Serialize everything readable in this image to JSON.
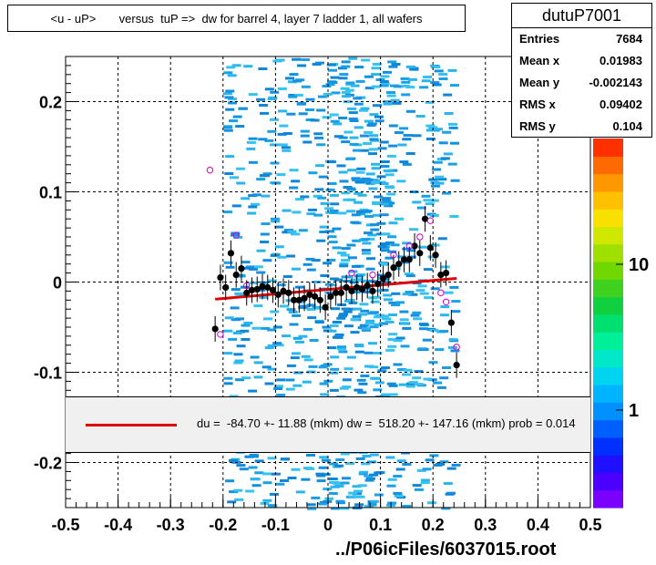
{
  "title": "<u - uP>       versus  tuP =>  dw for barrel 4, layer 7 ladder 1, all wafers",
  "stats": {
    "name": "dutuP7001",
    "rows": [
      {
        "label": "Entries",
        "value": "7684"
      },
      {
        "label": "Mean x",
        "value": "0.01983"
      },
      {
        "label": "Mean y",
        "value": "-0.002143"
      },
      {
        "label": "RMS x",
        "value": "0.09402"
      },
      {
        "label": "RMS y",
        "value": "0.104"
      }
    ]
  },
  "legend": {
    "text": "du =  -84.70 +- 11.88 (mkm) dw =  518.20 +- 147.16 (mkm) prob = 0.014"
  },
  "file_label": "../P06icFiles/6037015.root",
  "colors": {
    "fit_line": "#e00000",
    "profile_points": "#000000",
    "open_markers": "#cc00cc",
    "density": "#1aa0e6"
  },
  "chart_data": {
    "type": "scatter",
    "xlim": [
      -0.5,
      0.5
    ],
    "ylim": [
      -0.25,
      0.25
    ],
    "x_ticks": [
      "-0.5",
      "-0.4",
      "-0.3",
      "-0.2",
      "-0.1",
      "0",
      "0.1",
      "0.2",
      "0.3",
      "0.4",
      "0.5"
    ],
    "y_ticks": [
      "0.2",
      "0.1",
      "0",
      "-0.1",
      "-0.2"
    ],
    "colorbar_labels": [
      "10",
      "1"
    ],
    "grid": true,
    "fit_line": {
      "x": [
        -0.215,
        0.245
      ],
      "y": [
        -0.019,
        0.004
      ]
    },
    "profile_points": [
      {
        "x": -0.215,
        "y": -0.052
      },
      {
        "x": -0.205,
        "y": 0.005
      },
      {
        "x": -0.195,
        "y": -0.006
      },
      {
        "x": -0.185,
        "y": 0.032
      },
      {
        "x": -0.175,
        "y": 0.008
      },
      {
        "x": -0.165,
        "y": 0.015
      },
      {
        "x": -0.155,
        "y": -0.012
      },
      {
        "x": -0.145,
        "y": -0.009
      },
      {
        "x": -0.135,
        "y": -0.008
      },
      {
        "x": -0.125,
        "y": -0.005
      },
      {
        "x": -0.115,
        "y": -0.006
      },
      {
        "x": -0.105,
        "y": -0.009
      },
      {
        "x": -0.095,
        "y": -0.014
      },
      {
        "x": -0.085,
        "y": -0.01
      },
      {
        "x": -0.075,
        "y": -0.012
      },
      {
        "x": -0.065,
        "y": -0.02
      },
      {
        "x": -0.055,
        "y": -0.02
      },
      {
        "x": -0.045,
        "y": -0.018
      },
      {
        "x": -0.035,
        "y": -0.014
      },
      {
        "x": -0.025,
        "y": -0.016
      },
      {
        "x": -0.015,
        "y": -0.02
      },
      {
        "x": -0.005,
        "y": -0.028
      },
      {
        "x": 0.005,
        "y": -0.016
      },
      {
        "x": 0.015,
        "y": -0.012
      },
      {
        "x": 0.025,
        "y": -0.012
      },
      {
        "x": 0.035,
        "y": -0.006
      },
      {
        "x": 0.045,
        "y": -0.01
      },
      {
        "x": 0.055,
        "y": -0.006
      },
      {
        "x": 0.065,
        "y": -0.008
      },
      {
        "x": 0.075,
        "y": -0.004
      },
      {
        "x": 0.085,
        "y": -0.01
      },
      {
        "x": 0.095,
        "y": -0.002
      },
      {
        "x": 0.105,
        "y": 0.004
      },
      {
        "x": 0.115,
        "y": 0.008
      },
      {
        "x": 0.125,
        "y": 0.016
      },
      {
        "x": 0.135,
        "y": 0.02
      },
      {
        "x": 0.145,
        "y": 0.025
      },
      {
        "x": 0.155,
        "y": 0.025
      },
      {
        "x": 0.165,
        "y": 0.04
      },
      {
        "x": 0.175,
        "y": 0.032
      },
      {
        "x": 0.185,
        "y": 0.07
      },
      {
        "x": 0.195,
        "y": 0.038
      },
      {
        "x": 0.205,
        "y": 0.03
      },
      {
        "x": 0.215,
        "y": 0.008
      },
      {
        "x": 0.225,
        "y": 0.01
      },
      {
        "x": 0.235,
        "y": -0.045
      },
      {
        "x": 0.245,
        "y": -0.092
      }
    ],
    "open_markers": [
      {
        "x": -0.225,
        "y": 0.124
      },
      {
        "x": -0.205,
        "y": -0.058
      },
      {
        "x": -0.175,
        "y": 0.052
      },
      {
        "x": -0.155,
        "y": -0.004
      },
      {
        "x": 0.045,
        "y": 0.01
      },
      {
        "x": 0.085,
        "y": 0.008
      },
      {
        "x": 0.125,
        "y": 0.03
      },
      {
        "x": 0.155,
        "y": 0.04
      },
      {
        "x": 0.175,
        "y": 0.05
      },
      {
        "x": 0.195,
        "y": 0.068
      },
      {
        "x": 0.215,
        "y": -0.012
      },
      {
        "x": 0.225,
        "y": -0.022
      },
      {
        "x": 0.245,
        "y": -0.072
      }
    ]
  }
}
